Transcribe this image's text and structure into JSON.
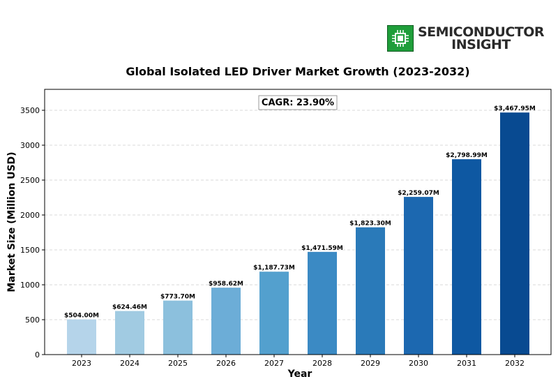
{
  "logo": {
    "line1": "SEMICONDUCTOR",
    "line2": "INSIGHT",
    "colors": {
      "mark": "#1f9e3a",
      "text": "#2a2a2a"
    }
  },
  "chart_data": {
    "type": "bar",
    "title": "Global Isolated LED Driver Market Growth (2023-2032)",
    "xlabel": "Year",
    "ylabel": "Market Size (Million USD)",
    "annotation": "CAGR: 23.90%",
    "categories": [
      "2023",
      "2024",
      "2025",
      "2026",
      "2027",
      "2028",
      "2029",
      "2030",
      "2031",
      "2032"
    ],
    "values": [
      504.0,
      624.46,
      773.7,
      958.62,
      1187.73,
      1471.59,
      1823.3,
      2259.07,
      2798.99,
      3467.95
    ],
    "value_labels": [
      "$504.00M",
      "$624.46M",
      "$773.70M",
      "$958.62M",
      "$1,187.73M",
      "$1,471.59M",
      "$1,823.30M",
      "$2,259.07M",
      "$2,798.99M",
      "$3,467.95M"
    ],
    "yticks": [
      0,
      500,
      1000,
      1500,
      2000,
      2500,
      3000,
      3500
    ],
    "ylim": [
      0,
      3800
    ],
    "grid": "horizontal dashed",
    "colors": [
      "#b5d4ea",
      "#a1cbe2",
      "#8cc0dd",
      "#6cadd7",
      "#53a0ce",
      "#3b8ac4",
      "#2a7ab9",
      "#1c68b0",
      "#0e58a2",
      "#084a91"
    ]
  }
}
